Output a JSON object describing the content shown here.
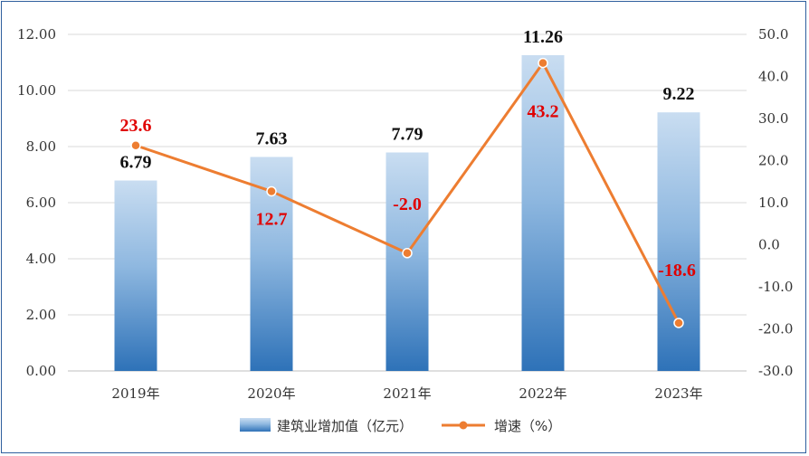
{
  "chart_data": {
    "type": "bar",
    "categories": [
      "2019年",
      "2020年",
      "2021年",
      "2022年",
      "2023年"
    ],
    "series": [
      {
        "name": "建筑业增加值（亿元）",
        "type": "bar",
        "axis": "left",
        "values": [
          6.79,
          7.63,
          7.79,
          11.26,
          9.22
        ],
        "labels": [
          "6.79",
          "7.63",
          "7.79",
          "11.26",
          "9.22"
        ],
        "color": "#5b9bd5"
      },
      {
        "name": "增速（%）",
        "type": "line",
        "axis": "right",
        "values": [
          23.6,
          12.7,
          -2.0,
          43.2,
          -18.6
        ],
        "labels": [
          "23.6",
          "12.7",
          "-2.0",
          "43.2",
          "-18.6"
        ],
        "color": "#ed7d31"
      }
    ],
    "y_left": {
      "ylim": [
        0,
        12
      ],
      "ticks": [
        "0.00",
        "2.00",
        "4.00",
        "6.00",
        "8.00",
        "10.00",
        "12.00"
      ]
    },
    "y_right": {
      "ylim": [
        -30,
        50
      ],
      "ticks": [
        "-30.0",
        "-20.0",
        "-10.0",
        "0.0",
        "10.0",
        "20.0",
        "30.0",
        "40.0",
        "50.0"
      ]
    },
    "grid": true,
    "legend_position": "bottom",
    "label_color_line": "#e00000",
    "label_color_bar": "#111111"
  }
}
